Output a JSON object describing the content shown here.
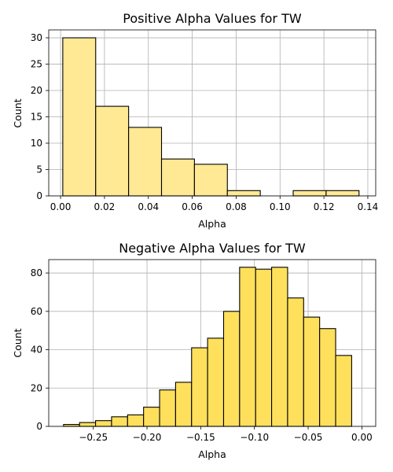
{
  "chart_data": [
    {
      "type": "bar",
      "title": "Positive Alpha Values for TW",
      "xlabel": "Alpha",
      "ylabel": "Count",
      "color": "#ffe994",
      "grid": true,
      "xlim": [
        -0.0054,
        0.1436
      ],
      "ylim": [
        0,
        31.5
      ],
      "xticks": [
        0.0,
        0.02,
        0.04,
        0.06,
        0.08,
        0.1,
        0.12,
        0.14
      ],
      "xtick_labels": [
        "0.00",
        "0.02",
        "0.04",
        "0.06",
        "0.08",
        "0.10",
        "0.12",
        "0.14"
      ],
      "yticks": [
        0,
        5,
        10,
        15,
        20,
        25,
        30
      ],
      "ytick_labels": [
        "0",
        "5",
        "10",
        "15",
        "20",
        "25",
        "30"
      ],
      "bin_edges": [
        0.001,
        0.016,
        0.031,
        0.046,
        0.061,
        0.076,
        0.091,
        0.106,
        0.121,
        0.136
      ],
      "values": [
        30,
        17,
        13,
        7,
        6,
        1,
        0,
        1,
        1
      ]
    },
    {
      "type": "bar",
      "title": "Negative Alpha Values for TW",
      "xlabel": "Alpha",
      "ylabel": "Count",
      "color": "#ffe05c",
      "grid": true,
      "xlim": [
        -0.2915,
        0.0129
      ],
      "ylim": [
        0,
        87
      ],
      "xticks": [
        -0.25,
        -0.2,
        -0.15,
        -0.1,
        -0.05,
        0.0
      ],
      "xtick_labels": [
        "−0.25",
        "−0.20",
        "−0.15",
        "−0.10",
        "−0.05",
        "0.00"
      ],
      "yticks": [
        0,
        20,
        40,
        60,
        80
      ],
      "ytick_labels": [
        "0",
        "20",
        "40",
        "60",
        "80"
      ],
      "bin_edges": [
        -0.2777,
        -0.2628,
        -0.2479,
        -0.233,
        -0.2181,
        -0.2032,
        -0.1883,
        -0.1734,
        -0.1585,
        -0.1436,
        -0.1287,
        -0.1138,
        -0.0989,
        -0.084,
        -0.0691,
        -0.0542,
        -0.0393,
        -0.0244,
        -0.0095
      ],
      "values": [
        1,
        2,
        3,
        5,
        6,
        10,
        19,
        23,
        41,
        46,
        60,
        83,
        82,
        83,
        67,
        57,
        51,
        37
      ]
    }
  ]
}
